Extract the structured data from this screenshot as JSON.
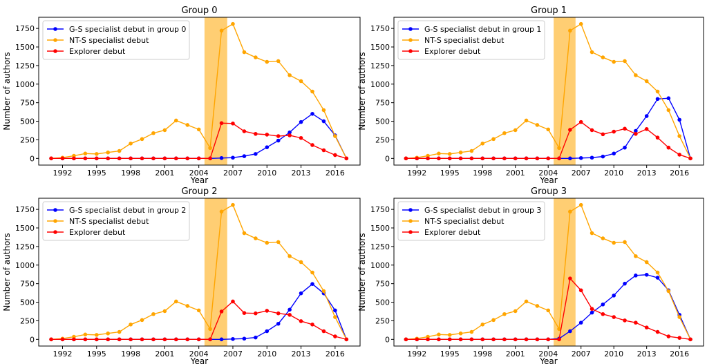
{
  "chart_data": [
    {
      "type": "line",
      "title": "Group 0",
      "xlabel": "Year",
      "ylabel": "Number of authors",
      "x": [
        1991,
        1992,
        1993,
        1994,
        1995,
        1996,
        1997,
        1998,
        1999,
        2000,
        2001,
        2002,
        2003,
        2004,
        2005,
        2006,
        2007,
        2008,
        2009,
        2010,
        2011,
        2012,
        2013,
        2014,
        2015,
        2016,
        2017
      ],
      "xticks": [
        "1992",
        "1995",
        "1998",
        "2001",
        "2004",
        "2007",
        "2010",
        "2013",
        "2016"
      ],
      "yticks": [
        "0",
        "250",
        "500",
        "750",
        "1000",
        "1250",
        "1500",
        "1750"
      ],
      "xlim": [
        1989.9,
        2018.2
      ],
      "ylim": [
        -90,
        1900
      ],
      "highlight_span": [
        2004.5,
        2006.5
      ],
      "legend_position": "upper-left",
      "series": [
        {
          "name": "G-S specialist debut in group 0",
          "color": "#0000ff",
          "values": [
            0,
            0,
            0,
            0,
            0,
            0,
            0,
            0,
            0,
            0,
            0,
            0,
            0,
            0,
            0,
            5,
            10,
            30,
            60,
            150,
            240,
            350,
            490,
            600,
            500,
            310,
            0
          ]
        },
        {
          "name": "NT-S specialist debut",
          "color": "#ffa500",
          "values": [
            0,
            10,
            35,
            65,
            60,
            80,
            100,
            200,
            260,
            340,
            380,
            510,
            450,
            390,
            140,
            1720,
            1810,
            1430,
            1360,
            1300,
            1310,
            1120,
            1040,
            900,
            650,
            300,
            0
          ]
        },
        {
          "name": "Explorer debut",
          "color": "#ff0000",
          "values": [
            0,
            0,
            0,
            0,
            0,
            0,
            0,
            0,
            0,
            0,
            0,
            0,
            0,
            0,
            0,
            475,
            470,
            365,
            330,
            320,
            300,
            310,
            275,
            180,
            110,
            45,
            0
          ]
        }
      ]
    },
    {
      "type": "line",
      "title": "Group 1",
      "xlabel": "Year",
      "ylabel": "Number of authors",
      "x": [
        1991,
        1992,
        1993,
        1994,
        1995,
        1996,
        1997,
        1998,
        1999,
        2000,
        2001,
        2002,
        2003,
        2004,
        2005,
        2006,
        2007,
        2008,
        2009,
        2010,
        2011,
        2012,
        2013,
        2014,
        2015,
        2016,
        2017
      ],
      "xticks": [
        "1992",
        "1995",
        "1998",
        "2001",
        "2004",
        "2007",
        "2010",
        "2013",
        "2016"
      ],
      "yticks": [
        "0",
        "250",
        "500",
        "750",
        "1000",
        "1250",
        "1500",
        "1750"
      ],
      "xlim": [
        1989.9,
        2018.2
      ],
      "ylim": [
        -90,
        1900
      ],
      "highlight_span": [
        2004.5,
        2006.5
      ],
      "legend_position": "upper-left",
      "series": [
        {
          "name": "G-S specialist debut in group 1",
          "color": "#0000ff",
          "values": [
            0,
            0,
            0,
            0,
            0,
            0,
            0,
            0,
            0,
            0,
            0,
            0,
            0,
            0,
            0,
            0,
            5,
            10,
            25,
            65,
            145,
            370,
            570,
            800,
            810,
            520,
            0
          ]
        },
        {
          "name": "NT-S specialist debut",
          "color": "#ffa500",
          "values": [
            0,
            10,
            35,
            65,
            60,
            80,
            100,
            200,
            260,
            340,
            380,
            510,
            450,
            390,
            140,
            1720,
            1810,
            1430,
            1360,
            1300,
            1310,
            1120,
            1040,
            900,
            650,
            300,
            0
          ]
        },
        {
          "name": "Explorer debut",
          "color": "#ff0000",
          "values": [
            0,
            0,
            0,
            0,
            0,
            0,
            0,
            0,
            0,
            0,
            0,
            0,
            0,
            0,
            0,
            385,
            490,
            380,
            325,
            360,
            400,
            330,
            395,
            280,
            145,
            50,
            0
          ]
        }
      ]
    },
    {
      "type": "line",
      "title": "Group 2",
      "xlabel": "Year",
      "ylabel": "Number of authors",
      "x": [
        1991,
        1992,
        1993,
        1994,
        1995,
        1996,
        1997,
        1998,
        1999,
        2000,
        2001,
        2002,
        2003,
        2004,
        2005,
        2006,
        2007,
        2008,
        2009,
        2010,
        2011,
        2012,
        2013,
        2014,
        2015,
        2016,
        2017
      ],
      "xticks": [
        "1992",
        "1995",
        "1998",
        "2001",
        "2004",
        "2007",
        "2010",
        "2013",
        "2016"
      ],
      "yticks": [
        "0",
        "250",
        "500",
        "750",
        "1000",
        "1250",
        "1500",
        "1750"
      ],
      "xlim": [
        1989.9,
        2018.2
      ],
      "ylim": [
        -90,
        1900
      ],
      "highlight_span": [
        2004.5,
        2006.5
      ],
      "legend_position": "upper-left",
      "series": [
        {
          "name": "G-S specialist debut in group 2",
          "color": "#0000ff",
          "values": [
            0,
            0,
            0,
            0,
            0,
            0,
            0,
            0,
            0,
            0,
            0,
            0,
            0,
            0,
            0,
            0,
            5,
            10,
            25,
            110,
            210,
            400,
            620,
            745,
            620,
            390,
            0
          ]
        },
        {
          "name": "NT-S specialist debut",
          "color": "#ffa500",
          "values": [
            0,
            10,
            35,
            65,
            60,
            80,
            100,
            200,
            260,
            340,
            380,
            510,
            450,
            390,
            140,
            1720,
            1810,
            1430,
            1360,
            1300,
            1310,
            1120,
            1040,
            900,
            650,
            300,
            0
          ]
        },
        {
          "name": "Explorer debut",
          "color": "#ff0000",
          "values": [
            0,
            0,
            0,
            0,
            0,
            0,
            0,
            0,
            0,
            0,
            0,
            0,
            0,
            0,
            0,
            375,
            510,
            355,
            350,
            385,
            350,
            330,
            245,
            200,
            110,
            40,
            0
          ]
        }
      ]
    },
    {
      "type": "line",
      "title": "Group 3",
      "xlabel": "Year",
      "ylabel": "Number of authors",
      "x": [
        1991,
        1992,
        1993,
        1994,
        1995,
        1996,
        1997,
        1998,
        1999,
        2000,
        2001,
        2002,
        2003,
        2004,
        2005,
        2006,
        2007,
        2008,
        2009,
        2010,
        2011,
        2012,
        2013,
        2014,
        2015,
        2016,
        2017
      ],
      "xticks": [
        "1992",
        "1995",
        "1998",
        "2001",
        "2004",
        "2007",
        "2010",
        "2013",
        "2016"
      ],
      "yticks": [
        "0",
        "250",
        "500",
        "750",
        "1000",
        "1250",
        "1500",
        "1750"
      ],
      "xlim": [
        1989.9,
        2018.2
      ],
      "ylim": [
        -90,
        1900
      ],
      "highlight_span": [
        2004.5,
        2006.5
      ],
      "legend_position": "upper-left",
      "series": [
        {
          "name": "G-S specialist debut in group 3",
          "color": "#0000ff",
          "values": [
            0,
            0,
            0,
            0,
            0,
            0,
            0,
            0,
            0,
            0,
            0,
            0,
            0,
            0,
            10,
            110,
            225,
            360,
            470,
            590,
            750,
            860,
            870,
            830,
            660,
            330,
            0
          ]
        },
        {
          "name": "NT-S specialist debut",
          "color": "#ffa500",
          "values": [
            0,
            10,
            35,
            65,
            60,
            80,
            100,
            200,
            260,
            340,
            380,
            510,
            450,
            390,
            140,
            1720,
            1810,
            1430,
            1360,
            1300,
            1310,
            1120,
            1040,
            900,
            650,
            300,
            0
          ]
        },
        {
          "name": "Explorer debut",
          "color": "#ff0000",
          "values": [
            0,
            0,
            0,
            0,
            0,
            0,
            0,
            0,
            0,
            0,
            0,
            0,
            0,
            0,
            0,
            820,
            660,
            410,
            340,
            300,
            255,
            225,
            160,
            100,
            40,
            20,
            0
          ]
        }
      ]
    }
  ]
}
